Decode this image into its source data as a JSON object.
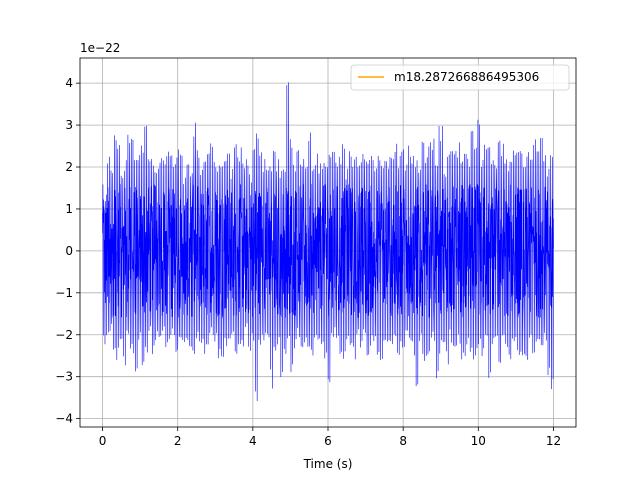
{
  "chart_data": {
    "type": "line",
    "title": "",
    "xlabel": "Time (s)",
    "ylabel": "",
    "offset_text": "1e−22",
    "xlim": [
      -0.6,
      12.6
    ],
    "ylim": [
      -4.2,
      4.6
    ],
    "xticks": [
      0,
      2,
      4,
      6,
      8,
      10,
      12
    ],
    "xtick_labels": [
      "0",
      "2",
      "4",
      "6",
      "8",
      "10",
      "12"
    ],
    "yticks": [
      -4,
      -3,
      -2,
      -1,
      0,
      1,
      2,
      3,
      4
    ],
    "ytick_labels": [
      "−4",
      "−3",
      "−2",
      "−1",
      "0",
      "1",
      "2",
      "3",
      "4"
    ],
    "grid": true,
    "legend": {
      "location": "upper right",
      "entries": [
        {
          "name": "m18.287266886495306",
          "color": "#ffa500"
        }
      ]
    },
    "series": [
      {
        "color": "#0000ff",
        "x_start": 0,
        "x_end": 12,
        "envelope_max": [
          1.0,
          2.3,
          2.1,
          2.9,
          2.6,
          2.0,
          2.2,
          2.9,
          2.8,
          2.2,
          2.3,
          2.6,
          3.2,
          2.4,
          2.2,
          1.9,
          2.2,
          2.5,
          2.3,
          2.6,
          2.2,
          2.6,
          2.3,
          1.8,
          2.1,
          2.0,
          3.2,
          2.5,
          2.0,
          2.2,
          2.5,
          2.9,
          2.3,
          2.2,
          2.1,
          2.4,
          2.6,
          2.0,
          2.7,
          2.5,
          2.1,
          2.2,
          1.9,
          2.6,
          3.0,
          2.4,
          2.2,
          2.1,
          2.2,
          2.4,
          2.2,
          2.0,
          2.1,
          4.2,
          2.8,
          2.1,
          2.6,
          2.3,
          2.2,
          2.9,
          2.0,
          2.4,
          2.1,
          2.2,
          2.2,
          2.4,
          2.6,
          2.3,
          2.3,
          2.8,
          2.0,
          2.5,
          2.3,
          2.3,
          2.2,
          2.5,
          2.2,
          2.5,
          2.2,
          2.5,
          2.3,
          2.2,
          2.3,
          2.4,
          2.7,
          2.3,
          2.5,
          2.1,
          2.6,
          2.4,
          2.3,
          2.0,
          2.8,
          2.4,
          2.9,
          2.8,
          2.3,
          3.0,
          2.0,
          2.3,
          2.5,
          2.4,
          2.6,
          2.4,
          2.5,
          2.3,
          2.9,
          2.5,
          3.2,
          2.2,
          2.7,
          2.5,
          2.4,
          2.3,
          2.8,
          2.6,
          2.2,
          2.2,
          2.6,
          2.4,
          2.5,
          2.0,
          2.4,
          2.3,
          2.9,
          2.6,
          2.8,
          2.5,
          2.0,
          2.6
        ],
        "envelope_min": [
          -2.3,
          -2.2,
          -2.0,
          -2.5,
          -2.6,
          -2.2,
          -2.8,
          -2.2,
          -2.6,
          -2.9,
          -2.2,
          -2.8,
          -2.5,
          -2.0,
          -2.6,
          -2.2,
          -2.3,
          -2.1,
          -2.5,
          -2.3,
          -2.1,
          -2.6,
          -2.4,
          -2.3,
          -2.2,
          -2.4,
          -2.5,
          -2.1,
          -2.3,
          -2.5,
          -2.3,
          -2.1,
          -2.2,
          -2.6,
          -2.7,
          -2.4,
          -2.2,
          -2.0,
          -2.8,
          -2.5,
          -2.3,
          -2.0,
          -2.6,
          -2.3,
          -3.8,
          -2.4,
          -2.3,
          -2.1,
          -3.3,
          -2.5,
          -2.4,
          -3.1,
          -2.5,
          -2.2,
          -3.1,
          -2.4,
          -2.1,
          -2.3,
          -2.2,
          -2.3,
          -2.6,
          -2.1,
          -2.2,
          -2.5,
          -2.6,
          -3.4,
          -2.3,
          -2.1,
          -2.5,
          -2.8,
          -2.2,
          -2.3,
          -2.6,
          -2.2,
          -2.4,
          -2.1,
          -2.6,
          -2.3,
          -2.2,
          -2.5,
          -2.8,
          -2.3,
          -2.2,
          -2.4,
          -2.3,
          -2.6,
          -2.5,
          -2.1,
          -2.4,
          -2.5,
          -3.3,
          -2.3,
          -2.8,
          -2.6,
          -2.4,
          -2.2,
          -3.1,
          -2.5,
          -2.3,
          -2.8,
          -2.2,
          -2.5,
          -2.3,
          -2.6,
          -2.7,
          -2.3,
          -2.6,
          -2.5,
          -2.3,
          -2.6,
          -2.3,
          -3.2,
          -2.4,
          -2.3,
          -2.7,
          -2.2,
          -2.5,
          -2.6,
          -2.3,
          -2.4,
          -2.5,
          -2.5,
          -2.8,
          -2.3,
          -2.6,
          -2.3,
          -2.4,
          -2.2,
          -3.0,
          -3.5
        ],
        "bulk_half_width": 1.6
      }
    ]
  }
}
